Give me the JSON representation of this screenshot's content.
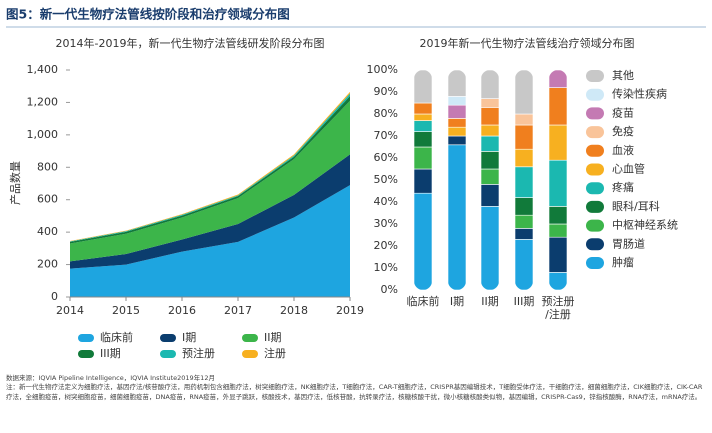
{
  "header": {
    "title": "图5：新一代生物疗法管线按阶段和治疗领域分布图"
  },
  "chart_data": [
    {
      "type": "stacked_area",
      "title": "2014年-2019年，新一代生物疗法管线研发阶段分布图",
      "ylabel": "产品数量",
      "categories": [
        "2014",
        "2015",
        "2016",
        "2017",
        "2018",
        "2019"
      ],
      "ylim": [
        0,
        1400
      ],
      "yticks": [
        0,
        200,
        400,
        600,
        800,
        {
          "value": 1000,
          "label": "1,000"
        },
        {
          "value": 1200,
          "label": "1,200"
        },
        {
          "value": 1400,
          "label": "1,400"
        }
      ],
      "legend": "bottom",
      "series": [
        {
          "name": "临床前",
          "color": "#1ea5e0",
          "values": [
            175,
            200,
            280,
            340,
            490,
            690
          ]
        },
        {
          "name": "I期",
          "color": "#0b3d6e",
          "values": [
            45,
            65,
            75,
            110,
            140,
            190
          ]
        },
        {
          "name": "II期",
          "color": "#3cb54a",
          "values": [
            110,
            125,
            135,
            160,
            220,
            330
          ]
        },
        {
          "name": "III期",
          "color": "#117a3a",
          "values": [
            10,
            12,
            12,
            12,
            15,
            30
          ]
        },
        {
          "name": "预注册",
          "color": "#1bb8b0",
          "values": [
            3,
            4,
            5,
            5,
            8,
            15
          ]
        },
        {
          "name": "注册",
          "color": "#f7b020",
          "values": [
            2,
            3,
            4,
            5,
            7,
            10
          ]
        }
      ]
    },
    {
      "type": "stacked_bar_100",
      "title": "2019年新一代生物疗法管线治疗领域分布图",
      "categories": [
        "临床前",
        "I期",
        "II期",
        "III期",
        "预注册/注册"
      ],
      "ylim": [
        0,
        100
      ],
      "yticks": [
        {
          "value": 0,
          "label": "0%"
        },
        {
          "value": 10,
          "label": "10%"
        },
        {
          "value": 20,
          "label": "20%"
        },
        {
          "value": 30,
          "label": "30%"
        },
        {
          "value": 40,
          "label": "40%"
        },
        {
          "value": 50,
          "label": "50%"
        },
        {
          "value": 60,
          "label": "60%"
        },
        {
          "value": 70,
          "label": "70%"
        },
        {
          "value": 80,
          "label": "80%"
        },
        {
          "value": 90,
          "label": "90%"
        },
        {
          "value": 100,
          "label": "100%"
        }
      ],
      "legend": "right",
      "series": [
        {
          "name": "肿瘤",
          "color": "#1ea5e0",
          "values": [
            44,
            66,
            38,
            23,
            8
          ]
        },
        {
          "name": "胃肠道",
          "color": "#0b3d6e",
          "values": [
            11,
            4,
            10,
            5,
            16
          ]
        },
        {
          "name": "中枢神经系统",
          "color": "#3cb54a",
          "values": [
            10,
            0,
            7,
            6,
            6
          ]
        },
        {
          "name": "眼科/耳科",
          "color": "#117a3a",
          "values": [
            7,
            0,
            8,
            8,
            8
          ]
        },
        {
          "name": "疼痛",
          "color": "#1bb8b0",
          "values": [
            5,
            0,
            7,
            14,
            21
          ]
        },
        {
          "name": "心血管",
          "color": "#f7b020",
          "values": [
            3,
            4,
            5,
            8,
            16
          ]
        },
        {
          "name": "血液",
          "color": "#f07f1e",
          "values": [
            5,
            4,
            8,
            11,
            17
          ]
        },
        {
          "name": "免疫",
          "color": "#f9c49a",
          "values": [
            0,
            0,
            4,
            5,
            0
          ]
        },
        {
          "name": "疫苗",
          "color": "#c47ab3",
          "values": [
            0,
            6,
            0,
            0,
            8
          ]
        },
        {
          "name": "传染性疾病",
          "color": "#cfe9f7",
          "values": [
            0,
            4,
            0,
            0,
            0
          ]
        },
        {
          "name": "其他",
          "color": "#c8c8c8",
          "values": [
            15,
            12,
            13,
            20,
            0
          ]
        }
      ]
    }
  ],
  "footer": {
    "source": "数据来源：IQVIA Pipeline Intelligence，IQVIA Institute2019年12月",
    "note": "注：新一代生物疗法定义为细胞疗法，基因疗法/核苷酸疗法，用药机制包含细胞疗法，树突细胞疗法，NK细胞疗法，T细胞疗法，CAR-T细胞疗法，CRISPR基因编辑技术，T细胞受体疗法，干细胞疗法，细菌细胞疗法，CIK细胞疗法，CIK-CAR疗法，全细胞疫苗，树突细胞疫苗，细菌细胞疫苗，DNA疫苗，RNA疫苗，外显子跳跃，核酸技术，基因疗法，低核苷酸，抗转录疗法，核糖核酸干扰，微小核糖核酸类似物，基因编辑，CRISPR-Cas9，锌指核酸酶，RNA疗法，mRNA疗法。"
  }
}
